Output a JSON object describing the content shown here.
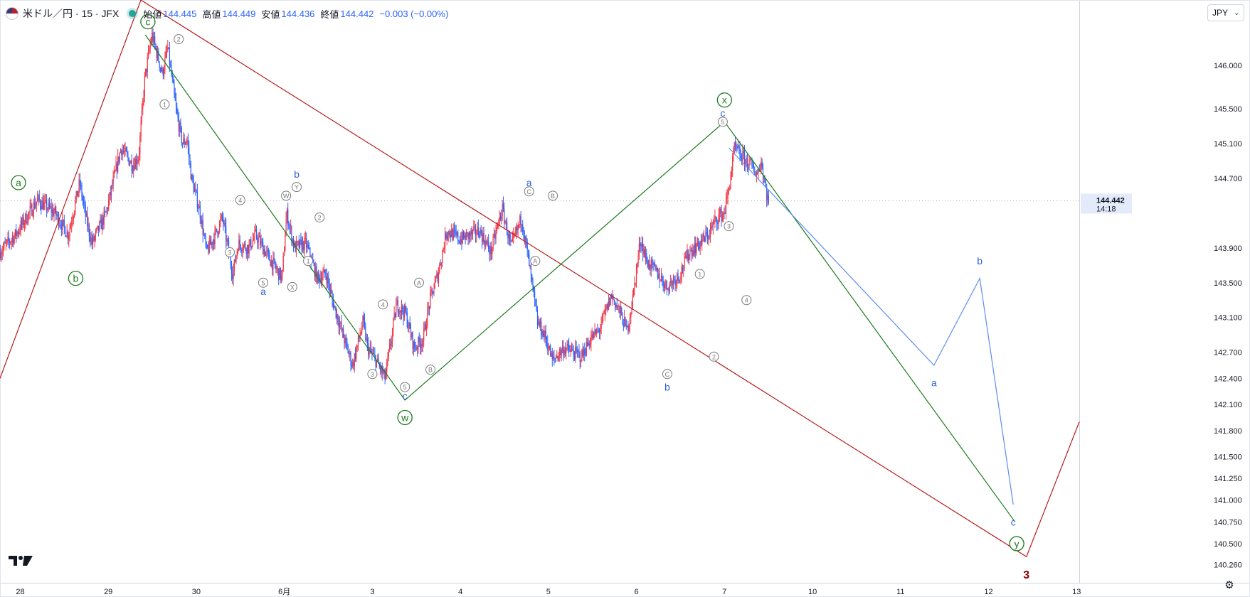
{
  "header": {
    "symbol": "米ドル／円 · 15 · JFX",
    "open_label": "始値",
    "open": "144.445",
    "high_label": "高値",
    "high": "144.449",
    "low_label": "安値",
    "low": "144.436",
    "close_label": "終値",
    "close": "144.442",
    "change": "−0.003 (−0.00%)"
  },
  "currency_selector": {
    "label": "JPY",
    "icon": "chevron-down-icon"
  },
  "logo": {
    "text": "TradingView logo",
    "icon": "tradingview-logo-icon"
  },
  "settings": {
    "icon": "gear-icon"
  },
  "price_tag": {
    "price": "144.442",
    "countdown": "14:18"
  },
  "colors": {
    "up": "#f23645",
    "down": "#2962ff",
    "red_line": "#b71c1c",
    "green_line": "#1b7b1b",
    "blue_line": "#5b8def",
    "wave_green": "#1b7b1b",
    "wave_blue": "#2d62d8",
    "wave_gray": "#7a7a7a",
    "wave_red": "#8b0000"
  },
  "chart_data": {
    "type": "candlestick",
    "title": "",
    "xlabel": "",
    "ylabel": "",
    "ylim": [
      140.05,
      146.75
    ],
    "y_ticks": [
      146.0,
      145.5,
      145.1,
      144.7,
      143.9,
      143.5,
      143.1,
      142.7,
      142.4,
      142.1,
      141.8,
      141.5,
      141.25,
      141.0,
      140.75,
      140.5,
      140.26
    ],
    "y_tick_labels": [
      "146.000",
      "145.500",
      "145.100",
      "144.700",
      "143.900",
      "143.500",
      "143.100",
      "142.700",
      "142.400",
      "142.100",
      "141.800",
      "141.500",
      "141.250",
      "141.000",
      "140.750",
      "140.500",
      "140.260"
    ],
    "x_range": [
      27.77,
      40.03
    ],
    "x_ticks": [
      28,
      29,
      30,
      31,
      32,
      33,
      34,
      35,
      36,
      37,
      38,
      39,
      40
    ],
    "x_tick_labels": [
      "28",
      "29",
      "30",
      "6月",
      "3",
      "4",
      "5",
      "6",
      "7",
      "10",
      "11",
      "12",
      "13"
    ],
    "current_price": 144.442,
    "price_path": [
      [
        27.77,
        143.85
      ],
      [
        27.95,
        144.05
      ],
      [
        28.2,
        144.45
      ],
      [
        28.4,
        144.3
      ],
      [
        28.55,
        144.05
      ],
      [
        28.68,
        144.65
      ],
      [
        28.75,
        144.25
      ],
      [
        28.82,
        143.95
      ],
      [
        28.98,
        144.3
      ],
      [
        29.15,
        145.05
      ],
      [
        29.28,
        144.85
      ],
      [
        29.35,
        144.95
      ],
      [
        29.42,
        145.85
      ],
      [
        29.5,
        146.35
      ],
      [
        29.62,
        145.9
      ],
      [
        29.68,
        146.2
      ],
      [
        29.78,
        145.45
      ],
      [
        29.85,
        145.1
      ],
      [
        29.9,
        145.15
      ],
      [
        29.95,
        144.7
      ],
      [
        30.05,
        144.3
      ],
      [
        30.12,
        143.85
      ],
      [
        30.22,
        144.05
      ],
      [
        30.3,
        144.25
      ],
      [
        30.42,
        143.6
      ],
      [
        30.48,
        143.95
      ],
      [
        30.6,
        143.9
      ],
      [
        30.68,
        144.05
      ],
      [
        30.82,
        143.8
      ],
      [
        30.98,
        143.55
      ],
      [
        31.03,
        144.3
      ],
      [
        31.12,
        143.9
      ],
      [
        31.25,
        143.95
      ],
      [
        31.38,
        143.55
      ],
      [
        31.48,
        143.6
      ],
      [
        31.55,
        143.3
      ],
      [
        31.7,
        142.8
      ],
      [
        31.78,
        142.55
      ],
      [
        31.9,
        143.05
      ],
      [
        31.95,
        142.75
      ],
      [
        32.05,
        142.6
      ],
      [
        32.15,
        142.4
      ],
      [
        32.28,
        143.25
      ],
      [
        32.38,
        143.15
      ],
      [
        32.48,
        142.75
      ],
      [
        32.58,
        142.85
      ],
      [
        32.66,
        143.3
      ],
      [
        32.75,
        143.6
      ],
      [
        32.85,
        144.1
      ],
      [
        33.0,
        144.0
      ],
      [
        33.12,
        144.05
      ],
      [
        33.22,
        144.1
      ],
      [
        33.35,
        143.85
      ],
      [
        33.48,
        144.35
      ],
      [
        33.58,
        143.9
      ],
      [
        33.7,
        144.25
      ],
      [
        33.78,
        143.75
      ],
      [
        33.88,
        143.05
      ],
      [
        33.98,
        142.85
      ],
      [
        34.05,
        142.6
      ],
      [
        34.18,
        142.75
      ],
      [
        34.28,
        142.7
      ],
      [
        34.38,
        142.65
      ],
      [
        34.48,
        142.85
      ],
      [
        34.58,
        142.95
      ],
      [
        34.72,
        143.35
      ],
      [
        34.8,
        143.2
      ],
      [
        34.9,
        142.95
      ],
      [
        34.96,
        143.3
      ],
      [
        35.05,
        144.0
      ],
      [
        35.12,
        143.75
      ],
      [
        35.25,
        143.6
      ],
      [
        35.35,
        143.45
      ],
      [
        35.5,
        143.6
      ],
      [
        35.6,
        143.85
      ],
      [
        35.72,
        143.95
      ],
      [
        35.82,
        144.05
      ],
      [
        35.92,
        144.25
      ],
      [
        36.0,
        144.3
      ],
      [
        36.05,
        144.55
      ],
      [
        36.12,
        145.05
      ],
      [
        36.2,
        144.95
      ],
      [
        36.3,
        144.85
      ],
      [
        36.38,
        144.75
      ],
      [
        36.42,
        144.9
      ],
      [
        36.48,
        144.55
      ],
      [
        36.5,
        144.442
      ]
    ],
    "candle_seed": 7,
    "wave_lines": [
      {
        "name": "red-channel",
        "color": "#b71c1c",
        "points": [
          [
            27.77,
            142.4
          ],
          [
            29.37,
            146.75
          ],
          [
            39.43,
            140.35
          ],
          [
            40.03,
            141.9
          ]
        ]
      },
      {
        "name": "green-wxy",
        "color": "#1b7b1b",
        "points": [
          [
            29.42,
            146.35
          ],
          [
            32.37,
            142.15
          ],
          [
            36.0,
            145.35
          ],
          [
            39.3,
            140.75
          ]
        ]
      },
      {
        "name": "blue-projection",
        "color": "#5b8def",
        "points": [
          [
            36.05,
            145.05
          ],
          [
            38.38,
            142.55
          ],
          [
            38.9,
            143.55
          ],
          [
            39.28,
            140.95
          ]
        ]
      }
    ],
    "wave_labels": [
      {
        "label": "a",
        "x": 27.98,
        "y": 144.65,
        "style": "circle",
        "color": "#1b7b1b"
      },
      {
        "label": "b",
        "x": 28.63,
        "y": 143.55,
        "style": "circle",
        "color": "#1b7b1b"
      },
      {
        "label": "c",
        "x": 29.45,
        "y": 146.5,
        "style": "circle",
        "color": "#1b7b1b"
      },
      {
        "label": "w",
        "x": 32.37,
        "y": 141.95,
        "style": "circle",
        "color": "#1b7b1b"
      },
      {
        "label": "x",
        "x": 36.0,
        "y": 145.6,
        "style": "circle",
        "color": "#1b7b1b"
      },
      {
        "label": "y",
        "x": 39.32,
        "y": 140.5,
        "style": "circle",
        "color": "#1b7b1b"
      },
      {
        "label": "1",
        "x": 29.64,
        "y": 145.55,
        "style": "small-circle",
        "color": "#7a7a7a"
      },
      {
        "label": "2",
        "x": 29.8,
        "y": 146.3,
        "style": "small-circle",
        "color": "#7a7a7a"
      },
      {
        "label": "3",
        "x": 30.38,
        "y": 143.85,
        "style": "small-circle",
        "color": "#7a7a7a"
      },
      {
        "label": "4",
        "x": 30.5,
        "y": 144.45,
        "style": "small-circle",
        "color": "#7a7a7a"
      },
      {
        "label": "5",
        "x": 30.76,
        "y": 143.5,
        "style": "small-circle",
        "color": "#7a7a7a"
      },
      {
        "label": "a",
        "x": 30.76,
        "y": 143.4,
        "style": "text",
        "color": "#2d62d8"
      },
      {
        "label": "W",
        "x": 31.02,
        "y": 144.5,
        "style": "small-circle",
        "color": "#7a7a7a"
      },
      {
        "label": "X",
        "x": 31.09,
        "y": 143.45,
        "style": "small-circle",
        "color": "#7a7a7a"
      },
      {
        "label": "Y",
        "x": 31.14,
        "y": 144.6,
        "style": "small-circle",
        "color": "#7a7a7a"
      },
      {
        "label": "b",
        "x": 31.14,
        "y": 144.75,
        "style": "text",
        "color": "#2d62d8"
      },
      {
        "label": "1",
        "x": 31.27,
        "y": 143.75,
        "style": "small-circle",
        "color": "#7a7a7a"
      },
      {
        "label": "2",
        "x": 31.4,
        "y": 144.25,
        "style": "small-circle",
        "color": "#7a7a7a"
      },
      {
        "label": "3",
        "x": 32.0,
        "y": 142.45,
        "style": "small-circle",
        "color": "#7a7a7a"
      },
      {
        "label": "4",
        "x": 32.12,
        "y": 143.25,
        "style": "small-circle",
        "color": "#7a7a7a"
      },
      {
        "label": "5",
        "x": 32.37,
        "y": 142.3,
        "style": "small-circle",
        "color": "#7a7a7a"
      },
      {
        "label": "c",
        "x": 32.37,
        "y": 142.2,
        "style": "text",
        "color": "#2d62d8"
      },
      {
        "label": "A",
        "x": 32.53,
        "y": 143.5,
        "style": "small-circle",
        "color": "#7a7a7a"
      },
      {
        "label": "B",
        "x": 32.66,
        "y": 142.5,
        "style": "small-circle",
        "color": "#7a7a7a"
      },
      {
        "label": "a",
        "x": 33.78,
        "y": 144.65,
        "style": "text",
        "color": "#2d62d8"
      },
      {
        "label": "C",
        "x": 33.78,
        "y": 144.55,
        "style": "small-circle",
        "color": "#7a7a7a"
      },
      {
        "label": "A",
        "x": 33.85,
        "y": 143.75,
        "style": "small-circle",
        "color": "#7a7a7a"
      },
      {
        "label": "B",
        "x": 34.05,
        "y": 144.5,
        "style": "small-circle",
        "color": "#7a7a7a"
      },
      {
        "label": "C",
        "x": 35.35,
        "y": 142.45,
        "style": "small-circle",
        "color": "#7a7a7a"
      },
      {
        "label": "b",
        "x": 35.35,
        "y": 142.3,
        "style": "text",
        "color": "#2d62d8"
      },
      {
        "label": "1",
        "x": 35.72,
        "y": 143.6,
        "style": "small-circle",
        "color": "#7a7a7a"
      },
      {
        "label": "2",
        "x": 35.88,
        "y": 142.65,
        "style": "small-circle",
        "color": "#7a7a7a"
      },
      {
        "label": "3",
        "x": 36.05,
        "y": 144.15,
        "style": "small-circle",
        "color": "#7a7a7a"
      },
      {
        "label": "4",
        "x": 36.25,
        "y": 143.3,
        "style": "small-circle",
        "color": "#7a7a7a"
      },
      {
        "label": "5",
        "x": 35.98,
        "y": 145.35,
        "style": "small-circle",
        "color": "#7a7a7a"
      },
      {
        "label": "c",
        "x": 35.98,
        "y": 145.45,
        "style": "text",
        "color": "#2d62d8"
      },
      {
        "label": "a",
        "x": 38.38,
        "y": 142.35,
        "style": "text",
        "color": "#2d62d8"
      },
      {
        "label": "b",
        "x": 38.9,
        "y": 143.75,
        "style": "text",
        "color": "#2d62d8"
      },
      {
        "label": "c",
        "x": 39.28,
        "y": 140.75,
        "style": "text",
        "color": "#2d62d8"
      },
      {
        "label": "3",
        "x": 39.43,
        "y": 140.15,
        "style": "bold-text",
        "color": "#8b0000"
      }
    ]
  }
}
